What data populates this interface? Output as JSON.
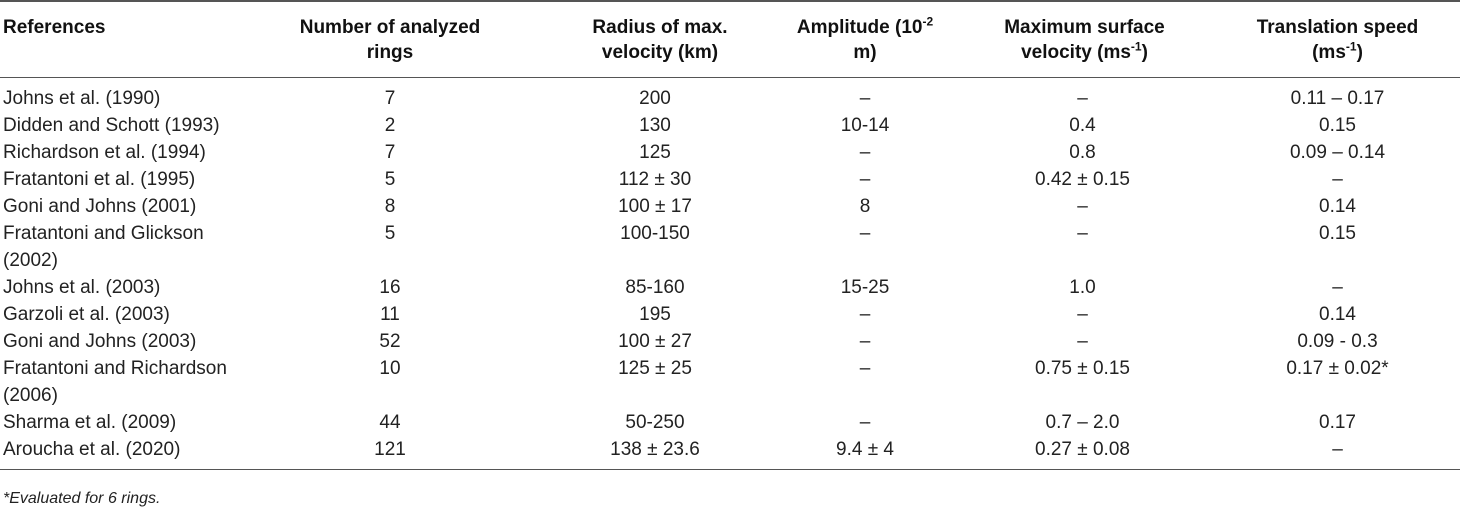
{
  "table": {
    "headers": [
      {
        "main": "References",
        "sup": "",
        "tail": ""
      },
      {
        "main": "Number of analyzed rings",
        "sup": "",
        "tail": ""
      },
      {
        "main": "Radius of max. velocity (km)",
        "sup": "",
        "tail": ""
      },
      {
        "main": "Amplitude (10",
        "sup": "-2",
        "tail": " m)"
      },
      {
        "main": "Maximum surface velocity (ms",
        "sup": "-1",
        "tail": ")"
      },
      {
        "main": "Translation speed (ms",
        "sup": "-1",
        "tail": ")"
      }
    ],
    "rows": [
      [
        "Johns et al. (1990)",
        "7",
        "200",
        "–",
        "–",
        "0.11 – 0.17"
      ],
      [
        "Didden and Schott (1993)",
        "2",
        "130",
        "10-14",
        "0.4",
        "0.15"
      ],
      [
        "Richardson et al. (1994)",
        "7",
        "125",
        "–",
        "0.8",
        "0.09 – 0.14"
      ],
      [
        "Fratantoni et al. (1995)",
        "5",
        "112 ± 30",
        "–",
        "0.42 ± 0.15",
        "–"
      ],
      [
        "Goni and Johns (2001)",
        "8",
        "100 ± 17",
        "8",
        "–",
        "0.14"
      ],
      [
        "Fratantoni and Glickson (2002)",
        "5",
        "100-150",
        "–",
        "–",
        "0.15"
      ],
      [
        "Johns et al. (2003)",
        "16",
        "85-160",
        "15-25",
        "1.0",
        "–"
      ],
      [
        "Garzoli et al. (2003)",
        "11",
        "195",
        "–",
        "–",
        "0.14"
      ],
      [
        "Goni and Johns (2003)",
        "52",
        "100 ± 27",
        "–",
        "–",
        "0.09 - 0.3"
      ],
      [
        "Fratantoni and Richardson (2006)",
        "10",
        "125 ± 25",
        "–",
        "0.75 ± 0.15",
        "0.17 ± 0.02*"
      ],
      [
        "Sharma et al. (2009)",
        "44",
        "50-250",
        "–",
        "0.7 – 2.0",
        "0.17"
      ],
      [
        "Aroucha et al. (2020)",
        "121",
        "138 ± 23.6",
        "9.4 ± 4",
        "0.27 ± 0.08",
        "–"
      ]
    ]
  },
  "footnote": "*Evaluated for 6 rings."
}
